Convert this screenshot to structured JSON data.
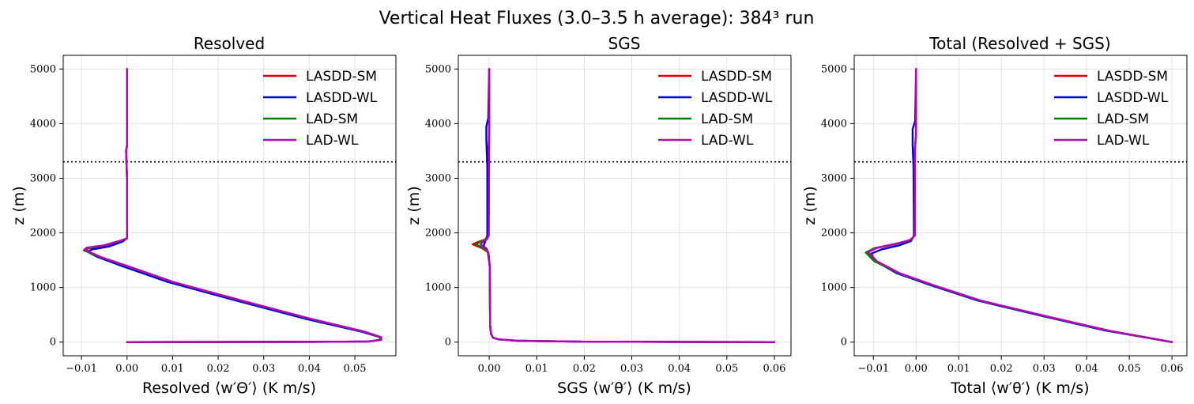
{
  "suptitle": "Vertical Heat Fluxes (3.0–3.5 h average): 384³ run",
  "legend_entries": [
    {
      "name": "LASDD-SM",
      "color": "#e00000"
    },
    {
      "name": "LASDD-WL",
      "color": "#0000dd"
    },
    {
      "name": "LAD-SM",
      "color": "#008000"
    },
    {
      "name": "LAD-WL",
      "color": "#bb00bb"
    }
  ],
  "chart_data": [
    {
      "type": "line",
      "title": "Resolved",
      "xlabel": "Resolved ⟨w′Θ′⟩ (K m/s)",
      "ylabel": "z (m)",
      "xlim": [
        -0.014,
        0.059
      ],
      "ylim": [
        -250,
        5250
      ],
      "xticks": [
        -0.01,
        0.0,
        0.01,
        0.02,
        0.03,
        0.04,
        0.05
      ],
      "xtick_labels": [
        "−0.01",
        "0.00",
        "0.01",
        "0.02",
        "0.03",
        "0.04",
        "0.05"
      ],
      "yticks": [
        0,
        1000,
        2000,
        3000,
        4000,
        5000
      ],
      "ytick_labels": [
        "0",
        "1000",
        "2000",
        "3000",
        "4000",
        "5000"
      ],
      "grid": true,
      "legend_position": "top-right",
      "hline_y": 3300,
      "series": [
        {
          "name": "LASDD-SM",
          "color": "#e00000",
          "x": [
            0.0,
            0.02,
            0.045,
            0.053,
            0.0555,
            0.0555,
            0.052,
            0.04,
            0.025,
            0.01,
            0.0,
            -0.006,
            -0.0092,
            -0.0085,
            -0.005,
            -0.0015,
            0.0,
            0.0,
            -0.0002,
            0.0,
            0.0
          ],
          "y": [
            0,
            3,
            6,
            12,
            40,
            90,
            190,
            430,
            760,
            1100,
            1390,
            1560,
            1680,
            1720,
            1760,
            1850,
            1900,
            3000,
            3500,
            3600,
            5000
          ]
        },
        {
          "name": "LASDD-WL",
          "color": "#0000dd",
          "x": [
            0.0,
            0.02,
            0.045,
            0.053,
            0.0555,
            0.0555,
            0.0515,
            0.039,
            0.024,
            0.009,
            -0.001,
            -0.0065,
            -0.0088,
            -0.0075,
            -0.004,
            -0.001,
            0.0,
            0.0,
            -0.0002,
            0.0,
            0.0
          ],
          "y": [
            0,
            3,
            6,
            12,
            40,
            90,
            190,
            430,
            760,
            1100,
            1390,
            1560,
            1660,
            1700,
            1750,
            1840,
            1900,
            3000,
            3500,
            3600,
            5000
          ]
        },
        {
          "name": "LAD-SM",
          "color": "#008000",
          "x": [
            0.0,
            0.02,
            0.045,
            0.053,
            0.0555,
            0.0555,
            0.052,
            0.04,
            0.025,
            0.01,
            0.0,
            -0.006,
            -0.0095,
            -0.009,
            -0.0055,
            -0.0015,
            0.0,
            0.0,
            -0.0002,
            0.0,
            0.0
          ],
          "y": [
            0,
            3,
            6,
            12,
            40,
            90,
            190,
            430,
            760,
            1100,
            1390,
            1560,
            1680,
            1720,
            1760,
            1850,
            1900,
            3000,
            3500,
            3600,
            5000
          ]
        },
        {
          "name": "LAD-WL",
          "color": "#bb00bb",
          "x": [
            0.0,
            0.02,
            0.045,
            0.053,
            0.0558,
            0.0558,
            0.0522,
            0.0402,
            0.0252,
            0.0102,
            0.0002,
            -0.0058,
            -0.0093,
            -0.0088,
            -0.0052,
            -0.0014,
            0.0,
            0.0,
            -0.0002,
            0.0,
            0.0
          ],
          "y": [
            0,
            3,
            6,
            12,
            40,
            90,
            190,
            430,
            760,
            1100,
            1390,
            1560,
            1690,
            1730,
            1770,
            1860,
            1900,
            3000,
            3500,
            3600,
            5000
          ]
        }
      ]
    },
    {
      "type": "line",
      "title": "SGS",
      "xlabel": "SGS ⟨w′θ′⟩ (K m/s)",
      "ylabel": "z (m)",
      "xlim": [
        -0.0065,
        0.0635
      ],
      "ylim": [
        -250,
        5250
      ],
      "xticks": [
        0.0,
        0.01,
        0.02,
        0.03,
        0.04,
        0.05,
        0.06
      ],
      "xtick_labels": [
        "0.00",
        "0.01",
        "0.02",
        "0.03",
        "0.04",
        "0.05",
        "0.06"
      ],
      "yticks": [
        0,
        1000,
        2000,
        3000,
        4000,
        5000
      ],
      "ytick_labels": [
        "0",
        "1000",
        "2000",
        "3000",
        "4000",
        "5000"
      ],
      "grid": true,
      "legend_position": "top-right",
      "hline_y": 3300,
      "series": [
        {
          "name": "LASDD-SM",
          "color": "#e00000",
          "x": [
            0.06,
            0.02,
            0.006,
            0.002,
            0.0008,
            0.0004,
            0.0002,
            0.0001,
            -0.0003,
            -0.0015,
            -0.0035,
            -0.0025,
            -0.0008,
            -0.0002,
            -0.0002,
            0.0,
            0.0
          ],
          "y": [
            0,
            8,
            25,
            50,
            80,
            150,
            300,
            1400,
            1650,
            1720,
            1790,
            1830,
            1880,
            1950,
            3500,
            3800,
            5000
          ]
        },
        {
          "name": "LASDD-WL",
          "color": "#0000dd",
          "x": [
            0.06,
            0.02,
            0.006,
            0.002,
            0.0008,
            0.0004,
            0.0002,
            0.0001,
            -0.0001,
            -0.0005,
            -0.0012,
            -0.0008,
            -0.0004,
            -0.0004,
            -0.0006,
            -0.0006,
            -0.0002,
            0.0
          ],
          "y": [
            0,
            8,
            25,
            50,
            80,
            150,
            300,
            1400,
            1600,
            1700,
            1760,
            1850,
            1950,
            3200,
            3700,
            3950,
            4100,
            5000
          ]
        },
        {
          "name": "LAD-SM",
          "color": "#008000",
          "x": [
            0.06,
            0.02,
            0.006,
            0.002,
            0.0008,
            0.0004,
            0.0002,
            0.0001,
            -0.0003,
            -0.0012,
            -0.0028,
            -0.002,
            -0.0006,
            -0.0001,
            0.0,
            0.0
          ],
          "y": [
            0,
            8,
            25,
            50,
            80,
            150,
            300,
            1400,
            1650,
            1720,
            1790,
            1830,
            1880,
            1950,
            3800,
            5000
          ]
        },
        {
          "name": "LAD-WL",
          "color": "#bb00bb",
          "x": [
            0.06,
            0.02,
            0.006,
            0.002,
            0.0008,
            0.0004,
            0.0002,
            0.0001,
            -0.0002,
            -0.0009,
            -0.0018,
            -0.0014,
            -0.0005,
            -0.0001,
            0.0,
            0.0
          ],
          "y": [
            0,
            8,
            25,
            50,
            80,
            150,
            300,
            1400,
            1650,
            1720,
            1790,
            1830,
            1880,
            1950,
            3800,
            5000
          ]
        }
      ]
    },
    {
      "type": "line",
      "title": "Total (Resolved + SGS)",
      "xlabel": "Total ⟨w′θ′⟩ (K m/s)",
      "ylabel": "z (m)",
      "xlim": [
        -0.0145,
        0.0635
      ],
      "ylim": [
        -250,
        5250
      ],
      "xticks": [
        -0.01,
        0.0,
        0.01,
        0.02,
        0.03,
        0.04,
        0.05,
        0.06
      ],
      "xtick_labels": [
        "−0.01",
        "0.00",
        "0.01",
        "0.02",
        "0.03",
        "0.04",
        "0.05",
        "0.06"
      ],
      "yticks": [
        0,
        1000,
        2000,
        3000,
        4000,
        5000
      ],
      "ytick_labels": [
        "0",
        "1000",
        "2000",
        "3000",
        "4000",
        "5000"
      ],
      "grid": true,
      "legend_position": "top-right",
      "hline_y": 3300,
      "series": [
        {
          "name": "LASDD-SM",
          "color": "#e00000",
          "x": [
            0.06,
            0.045,
            0.03,
            0.015,
            0.004,
            -0.004,
            -0.0095,
            -0.0115,
            -0.0095,
            -0.005,
            -0.0015,
            -0.0003,
            -0.0003,
            0.0,
            0.0
          ],
          "y": [
            0,
            210,
            480,
            760,
            1040,
            1260,
            1480,
            1640,
            1720,
            1790,
            1860,
            1950,
            3500,
            3800,
            5000
          ]
        },
        {
          "name": "LASDD-WL",
          "color": "#0000dd",
          "x": [
            0.06,
            0.0445,
            0.0295,
            0.0145,
            0.0035,
            -0.0045,
            -0.0095,
            -0.0105,
            -0.008,
            -0.004,
            -0.0012,
            -0.0005,
            -0.0006,
            -0.0008,
            -0.0008,
            -0.0002,
            0.0
          ],
          "y": [
            0,
            210,
            480,
            760,
            1040,
            1260,
            1480,
            1620,
            1700,
            1770,
            1850,
            1950,
            3200,
            3600,
            3900,
            4050,
            5000
          ]
        },
        {
          "name": "LAD-SM",
          "color": "#008000",
          "x": [
            0.06,
            0.045,
            0.03,
            0.015,
            0.004,
            -0.004,
            -0.0098,
            -0.0118,
            -0.0098,
            -0.0052,
            -0.0015,
            -0.0003,
            -0.0003,
            0.0,
            0.0
          ],
          "y": [
            0,
            210,
            480,
            760,
            1040,
            1260,
            1480,
            1640,
            1720,
            1790,
            1860,
            1950,
            3500,
            3800,
            5000
          ]
        },
        {
          "name": "LAD-WL",
          "color": "#bb00bb",
          "x": [
            0.06,
            0.0452,
            0.0302,
            0.0152,
            0.0042,
            -0.0038,
            -0.0092,
            -0.0112,
            -0.009,
            -0.0048,
            -0.0014,
            -0.0003,
            -0.0003,
            0.0,
            0.0
          ],
          "y": [
            0,
            210,
            480,
            760,
            1040,
            1260,
            1480,
            1650,
            1730,
            1800,
            1870,
            1950,
            3500,
            3800,
            5000
          ]
        }
      ]
    }
  ]
}
